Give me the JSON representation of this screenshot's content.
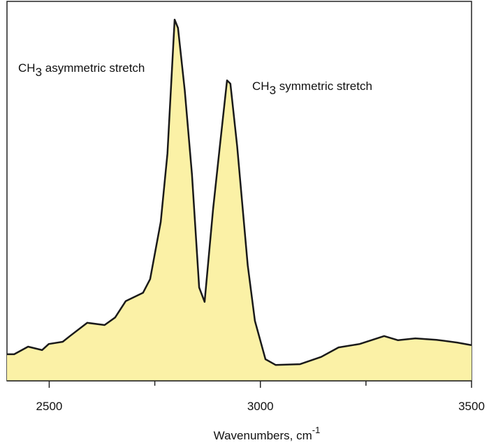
{
  "chart_data": {
    "type": "area",
    "x_label": {
      "text": "Wavenumbers, cm",
      "superscript": "-1"
    },
    "annotations": [
      {
        "parts": [
          "CH",
          "3",
          " asymmetric stretch"
        ]
      },
      {
        "parts": [
          "CH",
          "3",
          " symmetric stretch"
        ]
      }
    ],
    "x": [
      2400,
      2417,
      2450,
      2483,
      2499,
      2532,
      2549,
      2590,
      2631,
      2656,
      2681,
      2722,
      2739,
      2764,
      2780,
      2797,
      2805,
      2821,
      2838,
      2855,
      2868,
      2888,
      2904,
      2921,
      2929,
      2945,
      2970,
      2987,
      3012,
      3036,
      3094,
      3144,
      3185,
      3235,
      3293,
      3326,
      3367,
      3417,
      3466,
      3500
    ],
    "values": [
      7.0,
      7.0,
      9.0,
      8.1,
      9.7,
      10.3,
      11.8,
      15.3,
      14.7,
      16.7,
      21.0,
      23.2,
      26.8,
      41.9,
      59.9,
      95.2,
      93.0,
      76.5,
      54.4,
      24.6,
      20.8,
      45.2,
      61.8,
      79.2,
      78.3,
      61.8,
      30.5,
      15.8,
      5.7,
      4.2,
      4.4,
      6.3,
      8.8,
      9.7,
      11.8,
      10.7,
      11.2,
      10.8,
      10.1,
      9.4
    ],
    "color": "#fbf1a6",
    "line_color": "#1a1a1a",
    "xlim": [
      2400,
      3500
    ],
    "ylim": [
      0,
      100
    ],
    "xticks": [
      2500,
      3000,
      3500
    ],
    "xminorticks": [
      2750,
      3250
    ]
  }
}
